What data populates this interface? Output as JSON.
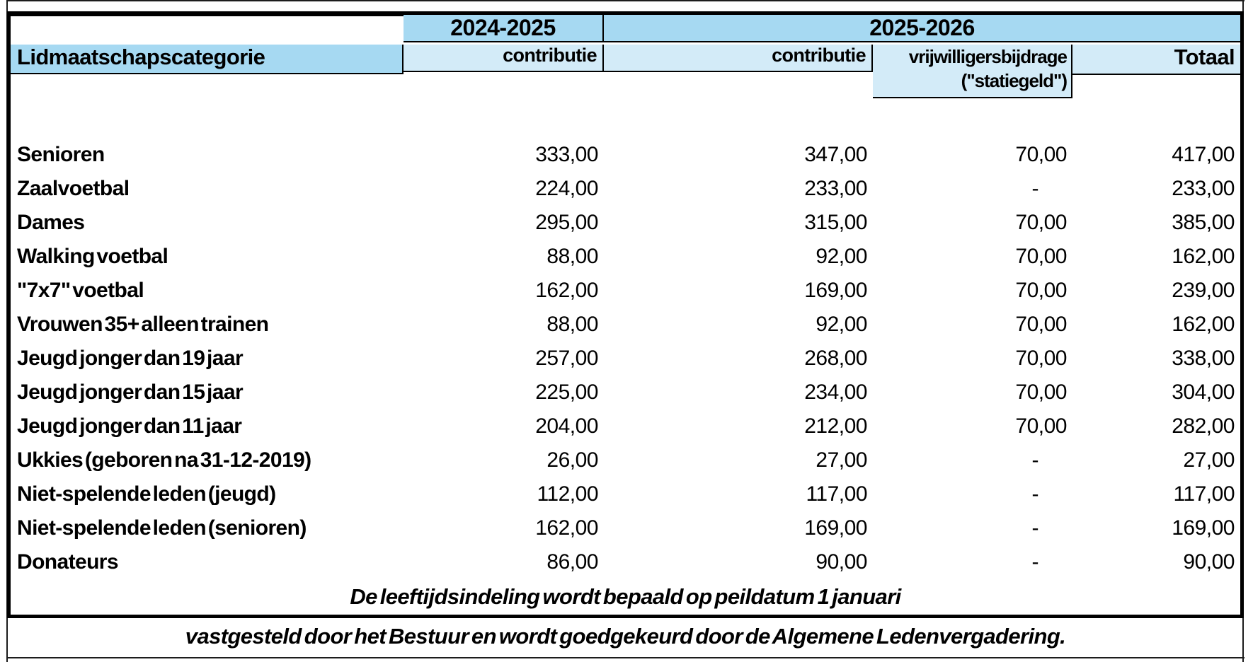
{
  "table": {
    "year_2024_label": "2024-2025",
    "year_2025_label": "2025-2026",
    "columns": {
      "category": "Lidmaatschapscategorie",
      "contributie_2024": "contributie",
      "contributie_2025": "contributie",
      "vrijwilligersbijdrage_line1": "vrijwilligersbijdrage",
      "vrijwilligersbijdrage_line2": "(\"statiegeld\")",
      "totaal": "Totaal"
    },
    "rows": [
      {
        "category": "Senioren",
        "c2024": "333,00",
        "c2025": "347,00",
        "vrijw": "70,00",
        "totaal": "417,00"
      },
      {
        "category": "Zaalvoetbal",
        "c2024": "224,00",
        "c2025": "233,00",
        "vrijw": "-",
        "totaal": "233,00"
      },
      {
        "category": "Dames",
        "c2024": "295,00",
        "c2025": "315,00",
        "vrijw": "70,00",
        "totaal": "385,00"
      },
      {
        "category": "Walking voetbal",
        "c2024": "88,00",
        "c2025": "92,00",
        "vrijw": "70,00",
        "totaal": "162,00"
      },
      {
        "category": "\"7x7\" voetbal",
        "c2024": "162,00",
        "c2025": "169,00",
        "vrijw": "70,00",
        "totaal": "239,00"
      },
      {
        "category": "Vrouwen 35+ alleen trainen",
        "c2024": "88,00",
        "c2025": "92,00",
        "vrijw": "70,00",
        "totaal": "162,00"
      },
      {
        "category": "Jeugd jonger dan 19 jaar",
        "c2024": "257,00",
        "c2025": "268,00",
        "vrijw": "70,00",
        "totaal": "338,00"
      },
      {
        "category": "Jeugd jonger dan 15 jaar",
        "c2024": "225,00",
        "c2025": "234,00",
        "vrijw": "70,00",
        "totaal": "304,00"
      },
      {
        "category": "Jeugd jonger dan 11 jaar",
        "c2024": "204,00",
        "c2025": "212,00",
        "vrijw": "70,00",
        "totaal": "282,00"
      },
      {
        "category": "Ukkies (geboren na 31-12-2019)",
        "c2024": "26,00",
        "c2025": "27,00",
        "vrijw": "-",
        "totaal": "27,00"
      },
      {
        "category": "Niet-spelende leden (jeugd)",
        "c2024": "112,00",
        "c2025": "117,00",
        "vrijw": "-",
        "totaal": "117,00"
      },
      {
        "category": "Niet-spelende leden (senioren)",
        "c2024": "162,00",
        "c2025": "169,00",
        "vrijw": "-",
        "totaal": "169,00"
      },
      {
        "category": "Donateurs",
        "c2024": "86,00",
        "c2025": "90,00",
        "vrijw": "-",
        "totaal": "90,00"
      }
    ],
    "footnote_inside": "De leeftijdsindeling wordt bepaald op peildatum 1 januari",
    "footnote_below": "vastgesteld door het Bestuur en wordt goedgekeurd door de Algemene Ledenvergadering."
  },
  "colors": {
    "header_blue": "#A6D9F2",
    "subheader_blue": "#D3EBF8",
    "border": "#000000"
  }
}
